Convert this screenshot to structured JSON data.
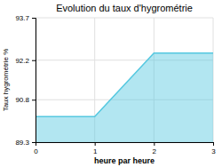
{
  "chart_data": {
    "type": "area",
    "title": "Evolution du taux d'hygrométrie",
    "xlabel": "heure par heure",
    "ylabel": "Taux hygrométrie %",
    "x": [
      0,
      1,
      2,
      3
    ],
    "values": [
      90.2,
      90.2,
      92.45,
      92.45
    ],
    "color": "#55c8e0",
    "xlim": [
      0,
      3
    ],
    "ylim": [
      89.3,
      93.7
    ],
    "xticks": [
      0,
      1,
      2,
      3
    ],
    "yticks": [
      89.3,
      90.8,
      92.2,
      93.7
    ],
    "grid": true
  }
}
